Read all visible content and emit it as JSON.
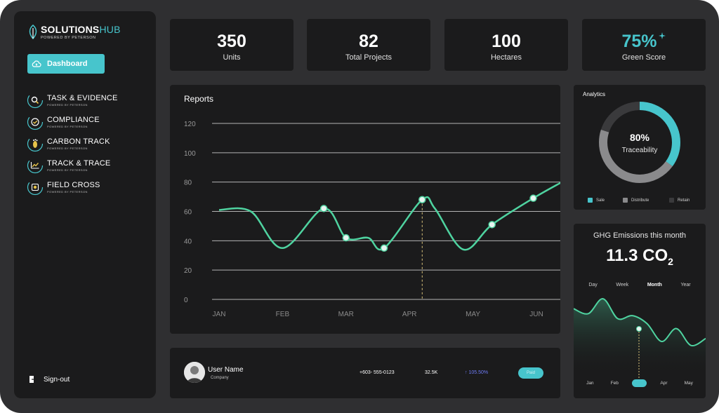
{
  "brand": {
    "title_main": "SOLUTIONS",
    "title_accent": "HUB",
    "subtitle": "POWERED BY PETERSON"
  },
  "sidebar": {
    "dashboard_label": "Dashboard",
    "items": [
      {
        "label": "TASK & EVIDENCE",
        "sub": "POWERED BY PETERSON",
        "icon": "search-icon"
      },
      {
        "label": "COMPLIANCE",
        "sub": "POWERED BY PETERSON",
        "icon": "check-icon"
      },
      {
        "label": "CARBON TRACK",
        "sub": "POWERED BY PETERSON",
        "icon": "footprint-icon"
      },
      {
        "label": "TRACK & TRACE",
        "sub": "POWERED BY PETERSON",
        "icon": "trend-icon"
      },
      {
        "label": "FIELD CROSS",
        "sub": "POWERED BY PETERSON",
        "icon": "target-icon"
      }
    ],
    "signout_label": "Sign-out"
  },
  "stats": [
    {
      "value": "350",
      "label": "Units"
    },
    {
      "value": "82",
      "label": "Total Projects"
    },
    {
      "value": "100",
      "label": "Hectares"
    },
    {
      "value": "75%",
      "label": "Green Score"
    }
  ],
  "colors": {
    "accent": "#47c5cc",
    "line": "#4fd3a0",
    "panel": "#1b1b1c",
    "background": "#2f2f31",
    "growth": "#6e7cf7"
  },
  "reports": {
    "title": "Reports"
  },
  "chart_data": {
    "type": "line",
    "title": "Reports",
    "categories": [
      "JAN",
      "FEB",
      "MAR",
      "APR",
      "MAY",
      "JUN"
    ],
    "yticks": [
      "120",
      "100",
      "80",
      "60",
      "40",
      "20",
      "0"
    ],
    "ylim": [
      0,
      120
    ],
    "grid": true,
    "x": [
      0,
      0.5,
      1,
      1.65,
      2,
      2.35,
      2.6,
      3.2,
      3.4,
      3.85,
      4.3,
      4.95,
      5.4
    ],
    "values": [
      61,
      60,
      35,
      62,
      42,
      42,
      35,
      68,
      62,
      34,
      51,
      69,
      80
    ],
    "markers": [
      3,
      4,
      6,
      7,
      10,
      11
    ],
    "highlight_index": 7
  },
  "analytics": {
    "title": "Analytics",
    "percent": "80%",
    "label": "Traceability",
    "segments": [
      {
        "name": "Sale",
        "value": 35,
        "color": "#47c5cc"
      },
      {
        "name": "Distribute",
        "value": 45,
        "color": "#8a8a8c"
      },
      {
        "name": "Retain",
        "value": 20,
        "color": "#3a3a3c"
      }
    ]
  },
  "ghg": {
    "title": "GHG Emissions this month",
    "value_main": "11.3 CO",
    "value_sub": "2",
    "tabs": [
      "Day",
      "Week",
      "Month",
      "Year"
    ],
    "active_tab": "Month",
    "months": [
      "Jan",
      "Feb",
      "Mar",
      "Apr",
      "May"
    ],
    "active_month": 2,
    "series": [
      45,
      40,
      55,
      35,
      38,
      30,
      12,
      25,
      8,
      15
    ]
  },
  "user": {
    "name": "User Name",
    "company": "Company",
    "phone": "+603- 555-0123",
    "count": "32.5K",
    "growth": "↑ 105.50%",
    "status": "Paid"
  }
}
